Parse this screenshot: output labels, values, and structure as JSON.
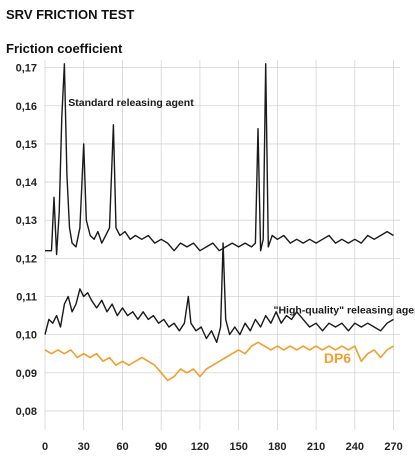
{
  "chart_data": {
    "type": "line",
    "title": "SRV FRICTION TEST",
    "ylabel": "Friction coefficient",
    "xlabel": "",
    "xlim": [
      0,
      275
    ],
    "ylim": [
      0.075,
      0.172
    ],
    "x_ticks": [
      0,
      30,
      60,
      90,
      120,
      150,
      180,
      210,
      240,
      270
    ],
    "y_ticks": [
      0.08,
      0.09,
      0.1,
      0.11,
      0.12,
      0.13,
      0.14,
      0.15,
      0.16,
      0.17
    ],
    "y_tick_labels": [
      "0,08",
      "0,09",
      "0,10",
      "0,11",
      "0,12",
      "0,13",
      "0,14",
      "0,15",
      "0,16",
      "0,17"
    ],
    "grid": true,
    "series": [
      {
        "name": "Standard releasing agent",
        "color": "#1a1a1a",
        "points": [
          [
            0,
            0.122
          ],
          [
            5,
            0.122
          ],
          [
            7,
            0.136
          ],
          [
            9,
            0.121
          ],
          [
            11,
            0.132
          ],
          [
            13,
            0.157
          ],
          [
            15,
            0.171
          ],
          [
            17,
            0.142
          ],
          [
            19,
            0.128
          ],
          [
            21,
            0.124
          ],
          [
            24,
            0.123
          ],
          [
            27,
            0.128
          ],
          [
            30,
            0.15
          ],
          [
            32,
            0.13
          ],
          [
            35,
            0.126
          ],
          [
            38,
            0.125
          ],
          [
            41,
            0.127
          ],
          [
            44,
            0.124
          ],
          [
            47,
            0.126
          ],
          [
            50,
            0.128
          ],
          [
            53,
            0.155
          ],
          [
            55,
            0.128
          ],
          [
            58,
            0.126
          ],
          [
            62,
            0.127
          ],
          [
            66,
            0.125
          ],
          [
            70,
            0.126
          ],
          [
            75,
            0.125
          ],
          [
            80,
            0.126
          ],
          [
            85,
            0.124
          ],
          [
            90,
            0.125
          ],
          [
            95,
            0.124
          ],
          [
            100,
            0.122
          ],
          [
            105,
            0.124
          ],
          [
            110,
            0.123
          ],
          [
            115,
            0.124
          ],
          [
            120,
            0.122
          ],
          [
            125,
            0.123
          ],
          [
            130,
            0.124
          ],
          [
            135,
            0.122
          ],
          [
            140,
            0.123
          ],
          [
            145,
            0.124
          ],
          [
            150,
            0.123
          ],
          [
            155,
            0.124
          ],
          [
            160,
            0.123
          ],
          [
            163,
            0.124
          ],
          [
            165,
            0.154
          ],
          [
            167,
            0.122
          ],
          [
            169,
            0.125
          ],
          [
            171,
            0.171
          ],
          [
            173,
            0.123
          ],
          [
            176,
            0.126
          ],
          [
            180,
            0.125
          ],
          [
            185,
            0.126
          ],
          [
            190,
            0.124
          ],
          [
            195,
            0.125
          ],
          [
            200,
            0.124
          ],
          [
            205,
            0.125
          ],
          [
            210,
            0.124
          ],
          [
            215,
            0.125
          ],
          [
            220,
            0.126
          ],
          [
            225,
            0.124
          ],
          [
            230,
            0.125
          ],
          [
            235,
            0.124
          ],
          [
            240,
            0.125
          ],
          [
            245,
            0.124
          ],
          [
            250,
            0.126
          ],
          [
            255,
            0.125
          ],
          [
            260,
            0.126
          ],
          [
            265,
            0.127
          ],
          [
            270,
            0.126
          ]
        ]
      },
      {
        "name": "\"High-quality\" releasing agent",
        "color": "#1a1a1a",
        "points": [
          [
            0,
            0.1
          ],
          [
            3,
            0.104
          ],
          [
            6,
            0.103
          ],
          [
            9,
            0.105
          ],
          [
            12,
            0.102
          ],
          [
            15,
            0.108
          ],
          [
            18,
            0.11
          ],
          [
            21,
            0.106
          ],
          [
            24,
            0.108
          ],
          [
            27,
            0.112
          ],
          [
            30,
            0.11
          ],
          [
            33,
            0.111
          ],
          [
            36,
            0.109
          ],
          [
            40,
            0.107
          ],
          [
            44,
            0.109
          ],
          [
            48,
            0.106
          ],
          [
            52,
            0.108
          ],
          [
            56,
            0.105
          ],
          [
            60,
            0.107
          ],
          [
            64,
            0.105
          ],
          [
            68,
            0.106
          ],
          [
            72,
            0.104
          ],
          [
            76,
            0.106
          ],
          [
            80,
            0.104
          ],
          [
            84,
            0.105
          ],
          [
            88,
            0.103
          ],
          [
            92,
            0.104
          ],
          [
            96,
            0.102
          ],
          [
            100,
            0.103
          ],
          [
            104,
            0.101
          ],
          [
            108,
            0.103
          ],
          [
            111,
            0.11
          ],
          [
            113,
            0.103
          ],
          [
            117,
            0.101
          ],
          [
            121,
            0.102
          ],
          [
            125,
            0.099
          ],
          [
            129,
            0.101
          ],
          [
            133,
            0.098
          ],
          [
            136,
            0.102
          ],
          [
            138,
            0.124
          ],
          [
            140,
            0.104
          ],
          [
            143,
            0.1
          ],
          [
            147,
            0.102
          ],
          [
            151,
            0.1
          ],
          [
            155,
            0.103
          ],
          [
            159,
            0.101
          ],
          [
            163,
            0.104
          ],
          [
            167,
            0.102
          ],
          [
            171,
            0.105
          ],
          [
            175,
            0.103
          ],
          [
            179,
            0.106
          ],
          [
            183,
            0.103
          ],
          [
            187,
            0.105
          ],
          [
            191,
            0.104
          ],
          [
            195,
            0.106
          ],
          [
            200,
            0.104
          ],
          [
            205,
            0.102
          ],
          [
            210,
            0.103
          ],
          [
            215,
            0.101
          ],
          [
            220,
            0.103
          ],
          [
            225,
            0.102
          ],
          [
            230,
            0.103
          ],
          [
            235,
            0.101
          ],
          [
            240,
            0.103
          ],
          [
            245,
            0.102
          ],
          [
            250,
            0.103
          ],
          [
            255,
            0.102
          ],
          [
            260,
            0.101
          ],
          [
            265,
            0.103
          ],
          [
            270,
            0.104
          ]
        ]
      },
      {
        "name": "DP6",
        "color": "#f0a030",
        "points": [
          [
            0,
            0.096
          ],
          [
            5,
            0.095
          ],
          [
            10,
            0.096
          ],
          [
            15,
            0.095
          ],
          [
            20,
            0.096
          ],
          [
            25,
            0.094
          ],
          [
            30,
            0.095
          ],
          [
            35,
            0.094
          ],
          [
            40,
            0.095
          ],
          [
            45,
            0.093
          ],
          [
            50,
            0.094
          ],
          [
            55,
            0.092
          ],
          [
            60,
            0.093
          ],
          [
            65,
            0.092
          ],
          [
            70,
            0.093
          ],
          [
            75,
            0.094
          ],
          [
            80,
            0.093
          ],
          [
            85,
            0.092
          ],
          [
            90,
            0.09
          ],
          [
            95,
            0.088
          ],
          [
            100,
            0.089
          ],
          [
            105,
            0.091
          ],
          [
            110,
            0.09
          ],
          [
            115,
            0.091
          ],
          [
            120,
            0.089
          ],
          [
            125,
            0.091
          ],
          [
            130,
            0.092
          ],
          [
            135,
            0.093
          ],
          [
            140,
            0.094
          ],
          [
            145,
            0.095
          ],
          [
            150,
            0.096
          ],
          [
            155,
            0.095
          ],
          [
            160,
            0.097
          ],
          [
            165,
            0.098
          ],
          [
            170,
            0.097
          ],
          [
            175,
            0.096
          ],
          [
            180,
            0.097
          ],
          [
            185,
            0.096
          ],
          [
            190,
            0.097
          ],
          [
            195,
            0.096
          ],
          [
            200,
            0.097
          ],
          [
            205,
            0.096
          ],
          [
            210,
            0.097
          ],
          [
            215,
            0.096
          ],
          [
            220,
            0.097
          ],
          [
            225,
            0.096
          ],
          [
            230,
            0.097
          ],
          [
            235,
            0.096
          ],
          [
            240,
            0.097
          ],
          [
            245,
            0.093
          ],
          [
            250,
            0.095
          ],
          [
            255,
            0.096
          ],
          [
            260,
            0.094
          ],
          [
            265,
            0.096
          ],
          [
            270,
            0.097
          ]
        ]
      }
    ],
    "annotations": [
      {
        "text": "Standard releasing agent",
        "x": 18,
        "y": 0.16,
        "color": "#1a1a1a"
      },
      {
        "text": "\"High-quality\" releasing agent",
        "x": 177,
        "y": 0.1055,
        "color": "#1a1a1a"
      },
      {
        "text": "DP6",
        "x": 216,
        "y": 0.0925,
        "color": "#f0a030"
      }
    ]
  }
}
